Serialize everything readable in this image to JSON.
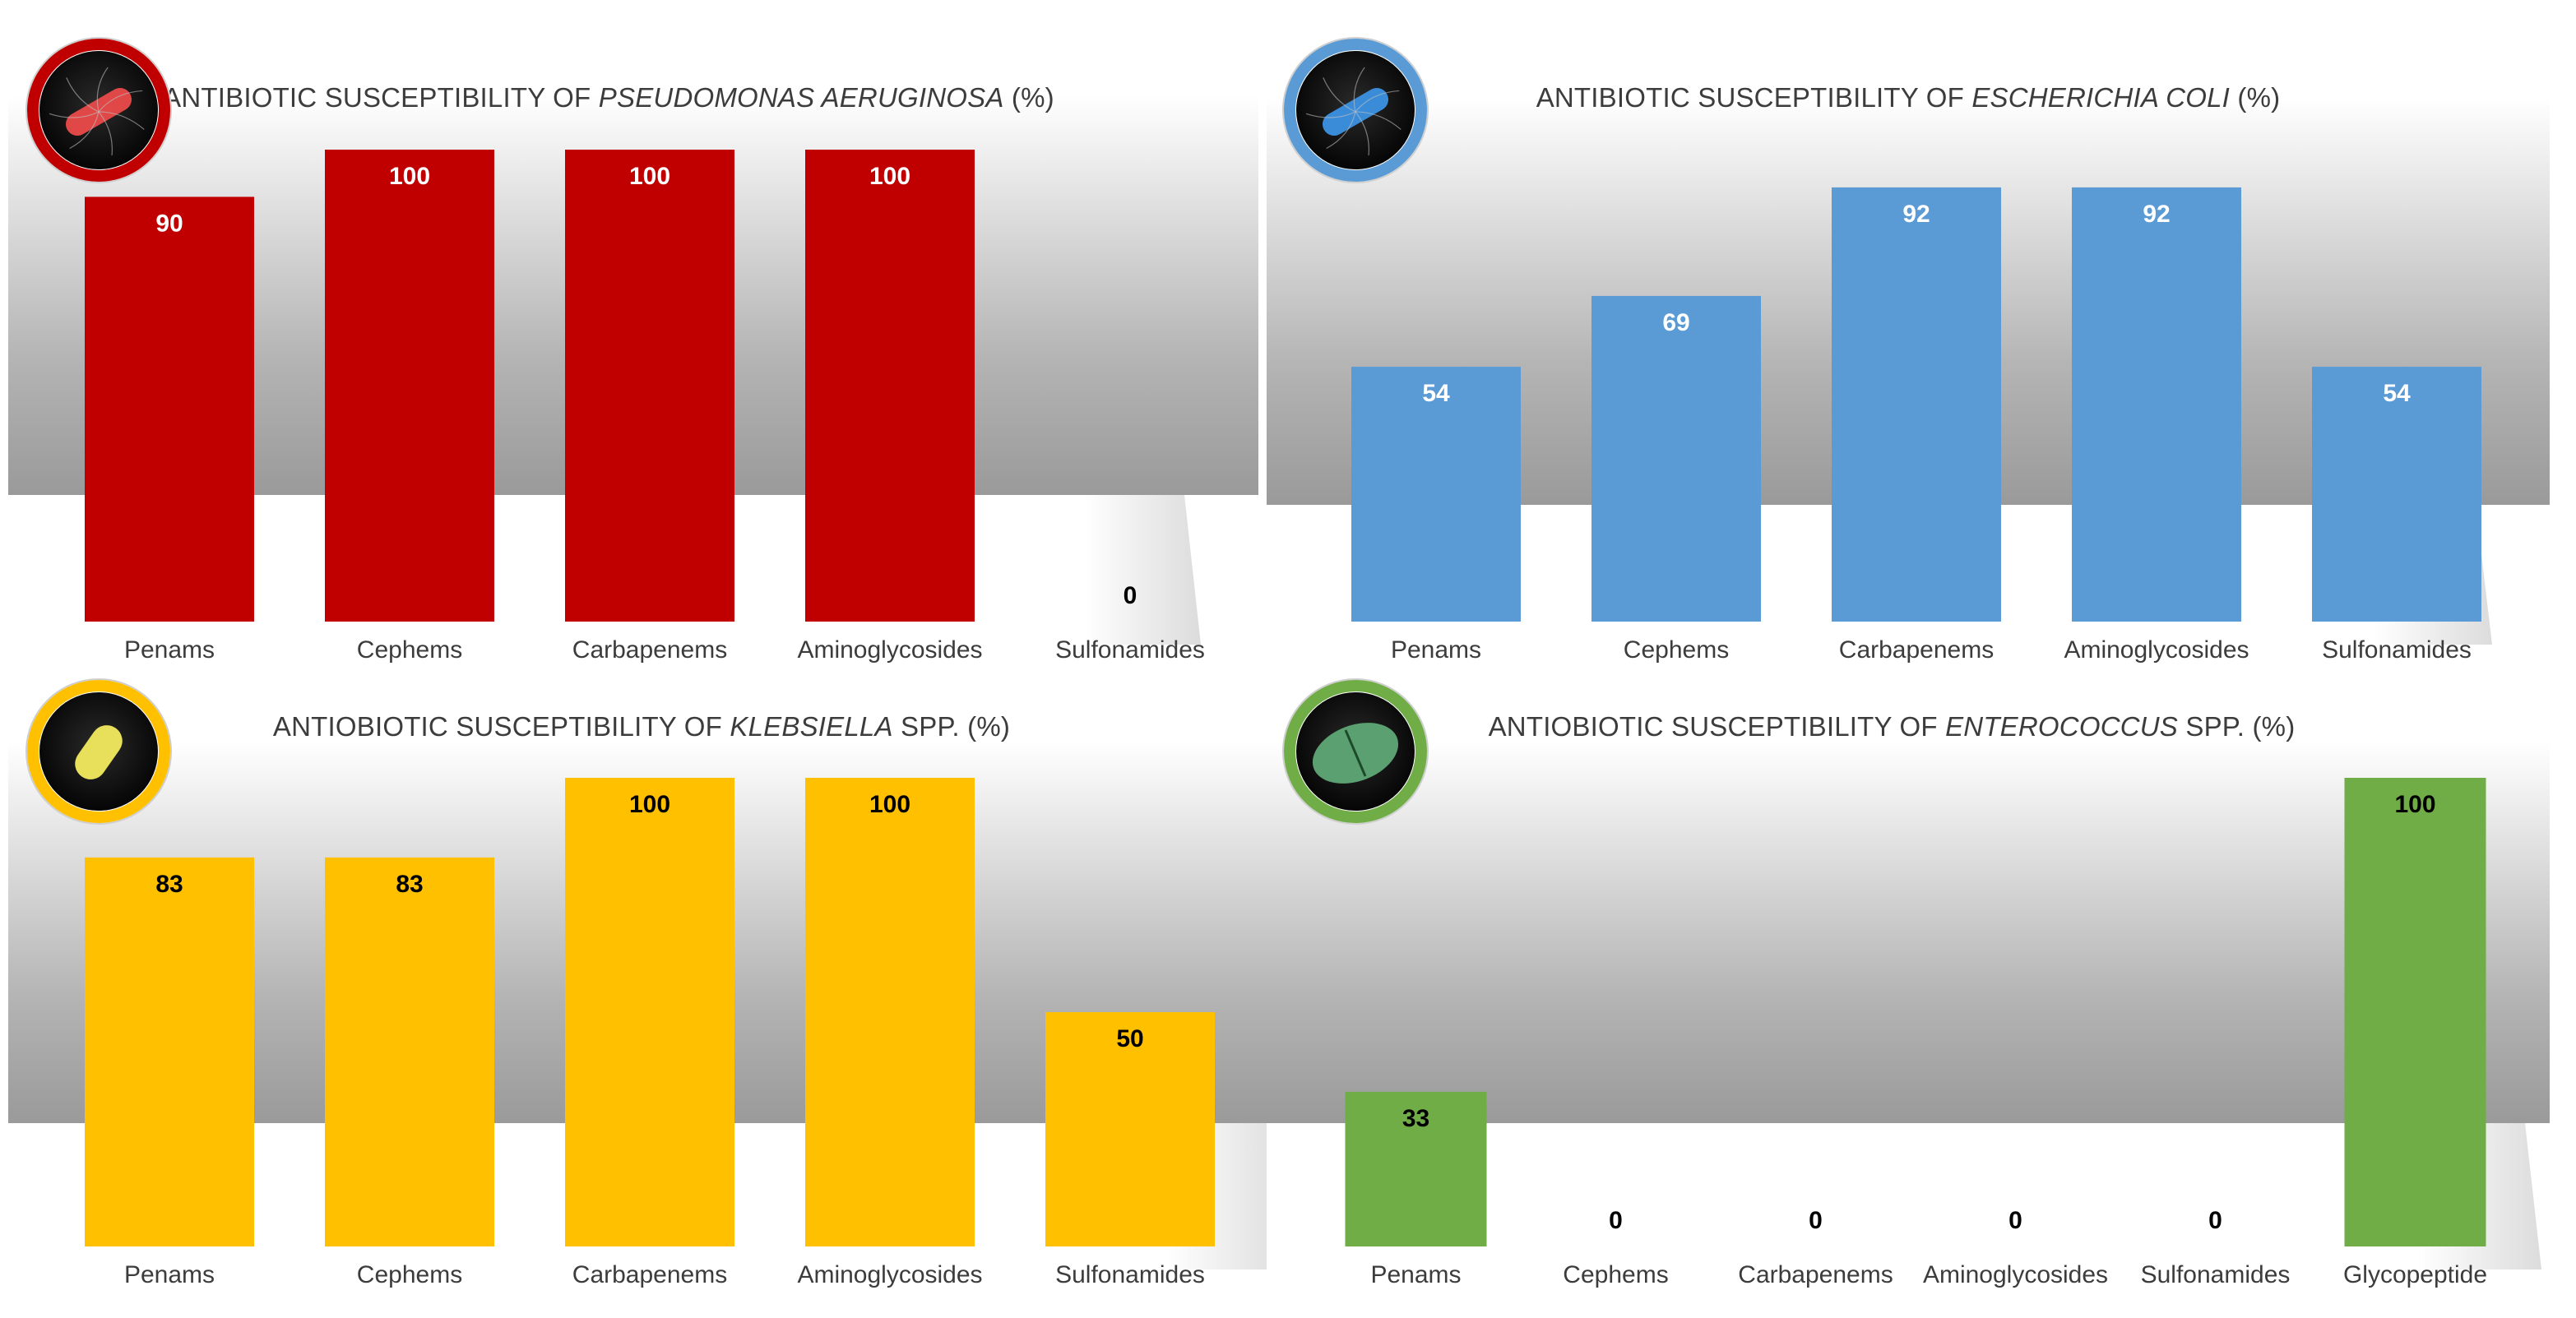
{
  "chart_data": [
    {
      "type": "bar",
      "title_pre": "ANTIBIOTIC SUSCEPTIBILITY OF ",
      "title_italic": "PSEUDOMONAS AERUGINOSA",
      "title_post": " (%)",
      "categories": [
        "Penams",
        "Cephems",
        "Carbapenems",
        "Aminoglycosides",
        "Sulfonamides"
      ],
      "values": [
        90,
        100,
        100,
        100,
        0
      ],
      "value_labels": [
        "90",
        "100",
        "100",
        "100",
        "0"
      ],
      "ylim": [
        0,
        100
      ],
      "color": "#C00000",
      "label_color": "#ffffff",
      "zero_label_color": "#000000",
      "ring_color": "#C00000",
      "bug_color": "#e04848",
      "icon_name": "pseudomonas-icon"
    },
    {
      "type": "bar",
      "title_pre": "ANTIBIOTIC SUSCEPTIBILITY OF ",
      "title_italic": "ESCHERICHIA COLI",
      "title_post": " (%)",
      "categories": [
        "Penams",
        "Cephems",
        "Carbapenems",
        "Aminoglycosides",
        "Sulfonamides"
      ],
      "values": [
        54,
        69,
        92,
        92,
        54
      ],
      "value_labels": [
        "54",
        "69",
        "92",
        "92",
        "54"
      ],
      "ylim": [
        0,
        100
      ],
      "color": "#5B9BD5",
      "label_color": "#ffffff",
      "zero_label_color": "#000000",
      "ring_color": "#5B9BD5",
      "bug_color": "#3a8cd8",
      "icon_name": "escherichia-coli-icon"
    },
    {
      "type": "bar",
      "title_pre": "ANTIOBIOTIC SUSCEPTIBILITY OF ",
      "title_italic": "KLEBSIELLA",
      "title_post": " SPP.  (%)",
      "categories": [
        "Penams",
        "Cephems",
        "Carbapenems",
        "Aminoglycosides",
        "Sulfonamides"
      ],
      "values": [
        83,
        83,
        100,
        100,
        50
      ],
      "value_labels": [
        "83",
        "83",
        "100",
        "100",
        "50"
      ],
      "ylim": [
        0,
        100
      ],
      "color": "#FFC000",
      "label_color": "#000000",
      "zero_label_color": "#000000",
      "ring_color": "#FFC000",
      "bug_color": "#e8e05a",
      "icon_name": "klebsiella-icon"
    },
    {
      "type": "bar",
      "title_pre": "ANTIOBIOTIC SUSCEPTIBILITY OF ",
      "title_italic": "ENTEROCOCCUS",
      "title_post": " SPP.  (%)",
      "categories": [
        "Penams",
        "Cephems",
        "Carbapenems",
        "Aminoglycosides",
        "Sulfonamides",
        "Glycopeptide"
      ],
      "values": [
        33,
        0,
        0,
        0,
        0,
        100
      ],
      "value_labels": [
        "33",
        "0",
        "0",
        "0",
        "0",
        "100"
      ],
      "ylim": [
        0,
        100
      ],
      "color": "#70AD47",
      "label_color": "#000000",
      "zero_label_color": "#000000",
      "ring_color": "#70AD47",
      "bug_color": "#5aa070",
      "icon_name": "enterococcus-icon"
    }
  ]
}
